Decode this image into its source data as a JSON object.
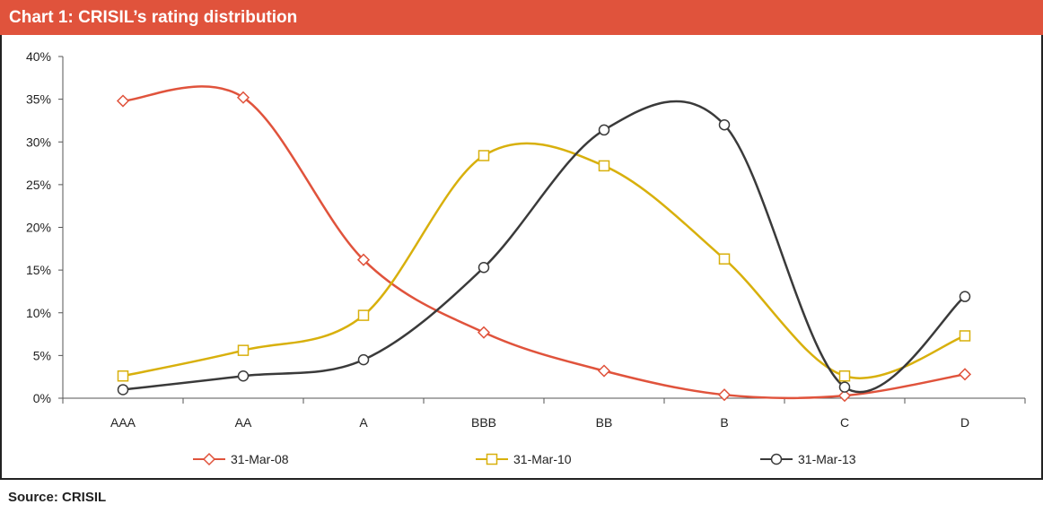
{
  "header": {
    "title": "Chart 1: CRISIL’s rating distribution"
  },
  "footer": {
    "source": "Source: CRISIL"
  },
  "chart_data": {
    "type": "line",
    "title": "Chart 1: CRISIL’s rating distribution",
    "xlabel": "",
    "ylabel": "",
    "categories": [
      "AAA",
      "AA",
      "A",
      "BBB",
      "BB",
      "B",
      "C",
      "D"
    ],
    "ylim": [
      0,
      40
    ],
    "y_ticks": [
      "0%",
      "5%",
      "10%",
      "15%",
      "20%",
      "25%",
      "30%",
      "35%",
      "40%"
    ],
    "y_format": "percent",
    "grid": false,
    "smooth": true,
    "legend_position": "bottom",
    "series": [
      {
        "name": "31-Mar-08",
        "color": "#e0533c",
        "marker": "diamond",
        "values": [
          34.8,
          35.2,
          16.2,
          7.7,
          3.2,
          0.4,
          0.3,
          2.8
        ]
      },
      {
        "name": "31-Mar-10",
        "color": "#d8b00c",
        "marker": "square",
        "values": [
          2.6,
          5.6,
          9.7,
          28.4,
          27.2,
          16.3,
          2.6,
          7.3
        ]
      },
      {
        "name": "31-Mar-13",
        "color": "#3a3a3a",
        "marker": "circle",
        "values": [
          1.0,
          2.6,
          4.5,
          15.3,
          31.4,
          32.0,
          1.3,
          11.9
        ]
      }
    ]
  }
}
